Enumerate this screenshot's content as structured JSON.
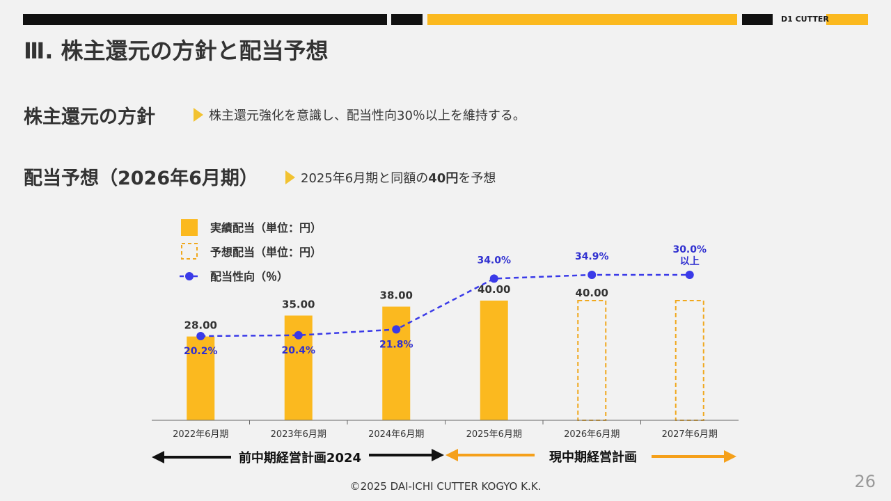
{
  "header": {
    "brand": "D1 CUTTER",
    "title": "Ⅲ. 株主還元の方針と配当予想",
    "colors": {
      "black": "#111111",
      "yellow": "#fbb91f"
    }
  },
  "policy": {
    "heading": "株主還元の方針",
    "text": "株主還元強化を意識し、配当性向30％以上を維持する。"
  },
  "forecast": {
    "heading": "配当予想（2026年6月期）",
    "text_pre": "2025年6月期と同額の",
    "text_bold": "40円",
    "text_post": "を予想"
  },
  "legend": {
    "actual": "実績配当（単位：円）",
    "forecast": "予想配当（単位：円）",
    "payout": "配当性向（％）"
  },
  "chart_data": {
    "type": "bar",
    "categories": [
      "2022年6月期",
      "2023年6月期",
      "2024年6月期",
      "2025年6月期",
      "2026年6月期",
      "2027年6月期"
    ],
    "series": [
      {
        "name": "実績配当（単位：円）",
        "values": [
          28.0,
          35.0,
          38.0,
          40.0,
          null,
          null
        ],
        "labels": [
          "28.00",
          "35.00",
          "38.00",
          "40.00",
          "",
          ""
        ]
      },
      {
        "name": "予想配当（単位：円）",
        "values": [
          null,
          null,
          null,
          null,
          40.0,
          40.0
        ],
        "labels": [
          "",
          "",
          "",
          "",
          "40.00",
          ""
        ]
      },
      {
        "name": "配当性向（％）",
        "type": "line",
        "values": [
          20.2,
          20.4,
          21.8,
          34.0,
          34.9,
          30.0
        ],
        "labels": [
          "20.2%",
          "20.4%",
          "21.8%",
          "34.0%",
          "34.9%",
          "30.0%"
        ],
        "label_note": "以上"
      }
    ],
    "colors": {
      "bar": "#fbb91f",
      "forecast_border": "#f0a81e",
      "line": "#3a3ae8",
      "line_label": "#3030d0"
    }
  },
  "periods": {
    "prev": "前中期経営計画2024",
    "current": "現中期経営計画",
    "colors": {
      "prev_arrow": "#111111",
      "current_arrow": "#f5a01a"
    }
  },
  "footer": {
    "copyright": "©2025 DAI-ICHI CUTTER KOGYO K.K.",
    "page": "26"
  }
}
